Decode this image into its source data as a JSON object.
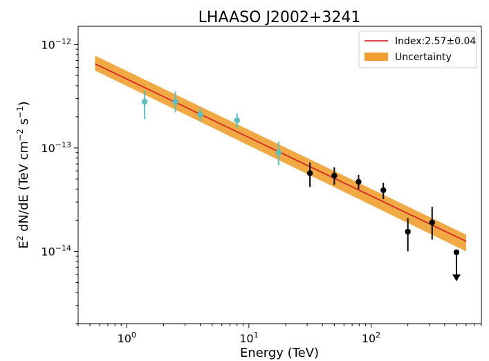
{
  "chart_data": {
    "type": "scatter",
    "title": "LHAASO J2002+3241",
    "xlabel": "Energy (TeV)",
    "ylabel": {
      "base": "E",
      "sup": "2",
      "rest": " dN/dE (TeV cm",
      "sup2": "−2",
      "mid": " s",
      "sup3": "−1",
      "end": ")"
    },
    "xscale": "log",
    "yscale": "log",
    "xlim": [
      0.4,
      800
    ],
    "ylim": [
      2e-15,
      1.5e-12
    ],
    "xticks": [
      {
        "value": 1,
        "base": "10",
        "exp": "0"
      },
      {
        "value": 10,
        "base": "10",
        "exp": "1"
      },
      {
        "value": 100,
        "base": "10",
        "exp": "2"
      }
    ],
    "yticks": [
      {
        "value": 1e-14,
        "base": "10",
        "exp": "−14"
      },
      {
        "value": 1e-13,
        "base": "10",
        "exp": "−13"
      },
      {
        "value": 1e-12,
        "base": "10",
        "exp": "−12"
      }
    ],
    "legend": {
      "position": "top-right",
      "entries": [
        {
          "label": "Index:2.57±0.04",
          "kind": "line",
          "color": "#d62728"
        },
        {
          "label": "Uncertainty",
          "kind": "patch",
          "color": "#f0a030"
        }
      ]
    },
    "fit_line": {
      "x": [
        0.55,
        600
      ],
      "y": [
        6.5e-13,
        1.25e-14
      ],
      "color": "#d62728"
    },
    "uncertainty_band": {
      "x": [
        0.55,
        600
      ],
      "y_upper": [
        7.8e-13,
        1.45e-14
      ],
      "y_lower": [
        5.6e-13,
        1e-14
      ],
      "color": "#f0a030"
    },
    "series": [
      {
        "color": "#5bc0c0",
        "points": [
          {
            "x": 1.4,
            "y": 2.8e-13,
            "ylo": 1.9e-13,
            "yhi": 3.6e-13
          },
          {
            "x": 2.5,
            "y": 2.8e-13,
            "ylo": 2.2e-13,
            "yhi": 3.5e-13
          },
          {
            "x": 4.0,
            "y": 2.1e-13,
            "ylo": 1.8e-13,
            "yhi": 2.45e-13
          },
          {
            "x": 8.0,
            "y": 1.85e-13,
            "ylo": 1.55e-13,
            "yhi": 2.15e-13
          },
          {
            "x": 17.5,
            "y": 9e-14,
            "ylo": 6.8e-14,
            "yhi": 1.15e-13
          }
        ]
      },
      {
        "color": "#000000",
        "points": [
          {
            "x": 31.6,
            "y": 5.7e-14,
            "ylo": 4.2e-14,
            "yhi": 7.2e-14
          },
          {
            "x": 50,
            "y": 5.4e-14,
            "ylo": 4.4e-14,
            "yhi": 6.5e-14
          },
          {
            "x": 79,
            "y": 4.7e-14,
            "ylo": 4e-14,
            "yhi": 5.5e-14
          },
          {
            "x": 126,
            "y": 3.9e-14,
            "ylo": 3.2e-14,
            "yhi": 4.6e-14
          },
          {
            "x": 200,
            "y": 1.55e-14,
            "ylo": 1e-14,
            "yhi": 2.1e-14
          },
          {
            "x": 316,
            "y": 1.9e-14,
            "ylo": 1.3e-14,
            "yhi": 2.7e-14
          }
        ]
      }
    ],
    "upper_limits": [
      {
        "x": 500,
        "y": 9.8e-15,
        "color": "#000000"
      }
    ]
  }
}
